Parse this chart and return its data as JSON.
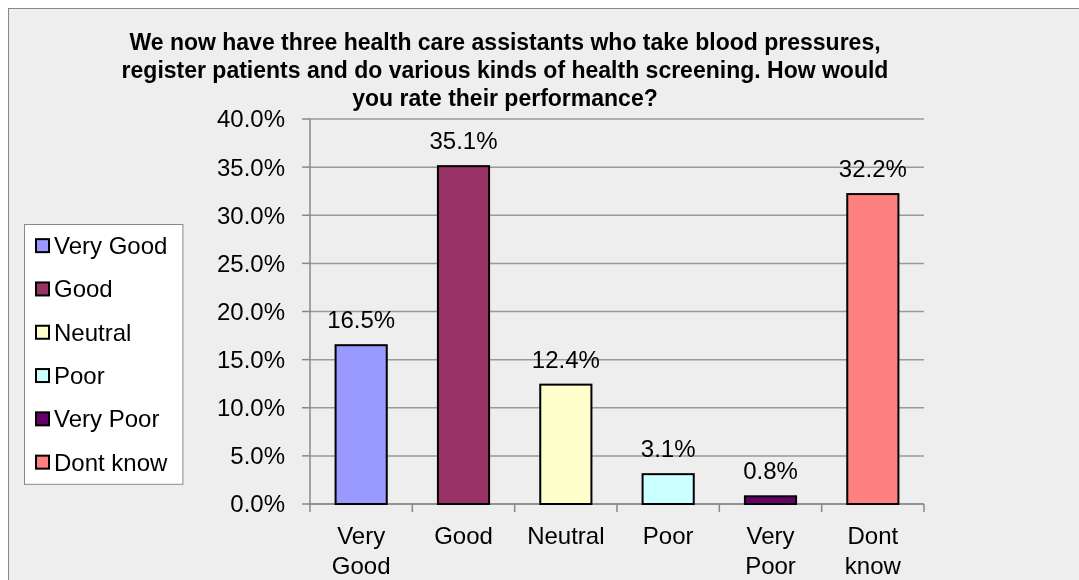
{
  "chart_data": {
    "type": "bar",
    "title": "We now have three health care assistants who take blood pressures, register patients and do various kinds of health screening. How would you rate their performance?",
    "categories": [
      "Very Good",
      "Good",
      "Neutral",
      "Poor",
      "Very Poor",
      "Dont know"
    ],
    "stacked": true,
    "series": [
      {
        "name": "Very Good",
        "color": "#9999ff",
        "values": [
          16.5,
          null,
          null,
          null,
          null,
          null
        ],
        "value_labels": [
          "16.5%",
          null,
          null,
          null,
          null,
          null
        ]
      },
      {
        "name": "Good",
        "color": "#993366",
        "values": [
          null,
          35.1,
          null,
          null,
          null,
          null
        ],
        "value_labels": [
          null,
          "35.1%",
          null,
          null,
          null,
          null
        ]
      },
      {
        "name": "Neutral",
        "color": "#ffffcc",
        "values": [
          null,
          null,
          12.4,
          null,
          null,
          null
        ],
        "value_labels": [
          null,
          null,
          "12.4%",
          null,
          null,
          null
        ]
      },
      {
        "name": "Poor",
        "color": "#ccffff",
        "values": [
          null,
          null,
          null,
          3.1,
          null,
          null
        ],
        "value_labels": [
          null,
          null,
          null,
          "3.1%",
          null,
          null
        ]
      },
      {
        "name": "Very Poor",
        "color": "#660066",
        "values": [
          null,
          null,
          null,
          null,
          0.8,
          null
        ],
        "value_labels": [
          null,
          null,
          null,
          null,
          "0.8%",
          null
        ]
      },
      {
        "name": "Dont know",
        "color": "#ff8080",
        "values": [
          null,
          null,
          null,
          null,
          null,
          32.2
        ],
        "value_labels": [
          null,
          null,
          null,
          null,
          null,
          "32.2%"
        ]
      }
    ],
    "ylim": [
      0,
      40
    ],
    "yticks": [
      {
        "value": 0,
        "label": "0.0%"
      },
      {
        "value": 5,
        "label": "5.0%"
      },
      {
        "value": 10,
        "label": "10.0%"
      },
      {
        "value": 15,
        "label": "15.0%"
      },
      {
        "value": 20,
        "label": "20.0%"
      },
      {
        "value": 25,
        "label": "25.0%"
      },
      {
        "value": 30,
        "label": "30.0%"
      },
      {
        "value": 35,
        "label": "35.0%"
      },
      {
        "value": 40,
        "label": "40.0%"
      }
    ],
    "grid": "y",
    "legend": "left"
  }
}
